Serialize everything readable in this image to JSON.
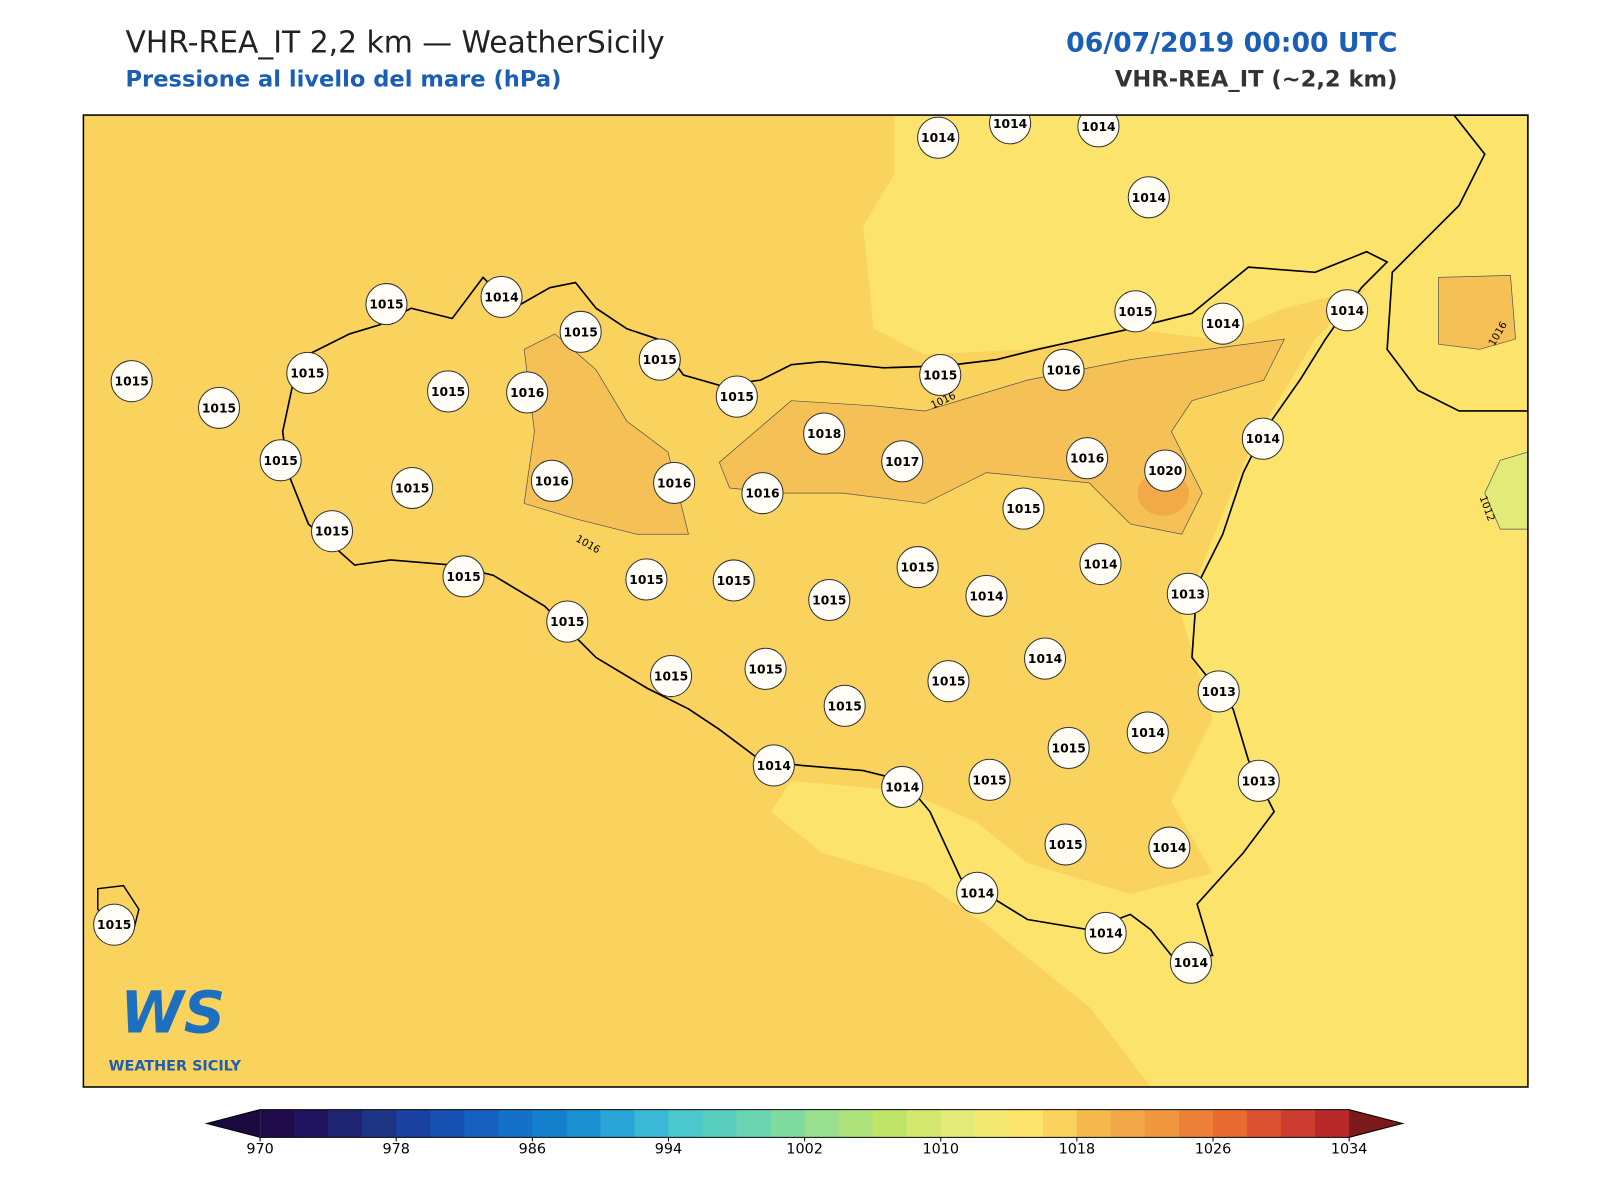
{
  "header": {
    "title": "VHR-REA_IT 2,2 km — WeatherSicily",
    "subtitle": "Pressione al livello del mare (hPa)",
    "date": "06/07/2019 00:00 UTC",
    "model": "VHR-REA_IT (~2,2 km)"
  },
  "map": {
    "stations": [
      1014,
      1014,
      1014,
      1014,
      1015,
      1014,
      1015,
      1015,
      1015,
      1015,
      1015,
      1015,
      1016,
      1015,
      1015,
      1016,
      1015,
      1014,
      1014,
      1015,
      1015,
      1016,
      1016,
      1016,
      1018,
      1017,
      1016,
      1020,
      1014,
      1015,
      1015,
      1015,
      1015,
      1015,
      1015,
      1015,
      1014,
      1014,
      1013,
      1015,
      1015,
      1015,
      1015,
      1015,
      1014,
      1013,
      1015,
      1014,
      1014,
      1014,
      1015,
      1013,
      1015,
      1014,
      1014,
      1014,
      1014,
      1015
    ],
    "contour_labels": [
      "1016",
      "1016",
      "1016",
      "1012"
    ],
    "logo": {
      "mark": "WS",
      "name": "WEATHER SICILY"
    }
  },
  "colorbar": {
    "lim": [
      970,
      1034
    ],
    "ticks": [
      970,
      978,
      986,
      994,
      1002,
      1010,
      1018,
      1026,
      1034
    ],
    "colors": [
      "#200c4a",
      "#221560",
      "#1f2470",
      "#1d3485",
      "#1a40a0",
      "#1550b0",
      "#1860c0",
      "#1570c8",
      "#1480cc",
      "#1a90d0",
      "#2aa5d5",
      "#3ab8d5",
      "#4ac8cc",
      "#5acfc0",
      "#6ad5b0",
      "#80dba0",
      "#98e090",
      "#aee27a",
      "#c0e468",
      "#d4e870",
      "#e2ea78",
      "#f2e872",
      "#fce46c",
      "#fad25e",
      "#f5b84c",
      "#f2a848",
      "#f09840",
      "#ec8038",
      "#e86a30",
      "#da5030",
      "#cc3c30",
      "#b82828"
    ],
    "under_color": "#1a0a40",
    "over_color": "#7a1a1a"
  }
}
